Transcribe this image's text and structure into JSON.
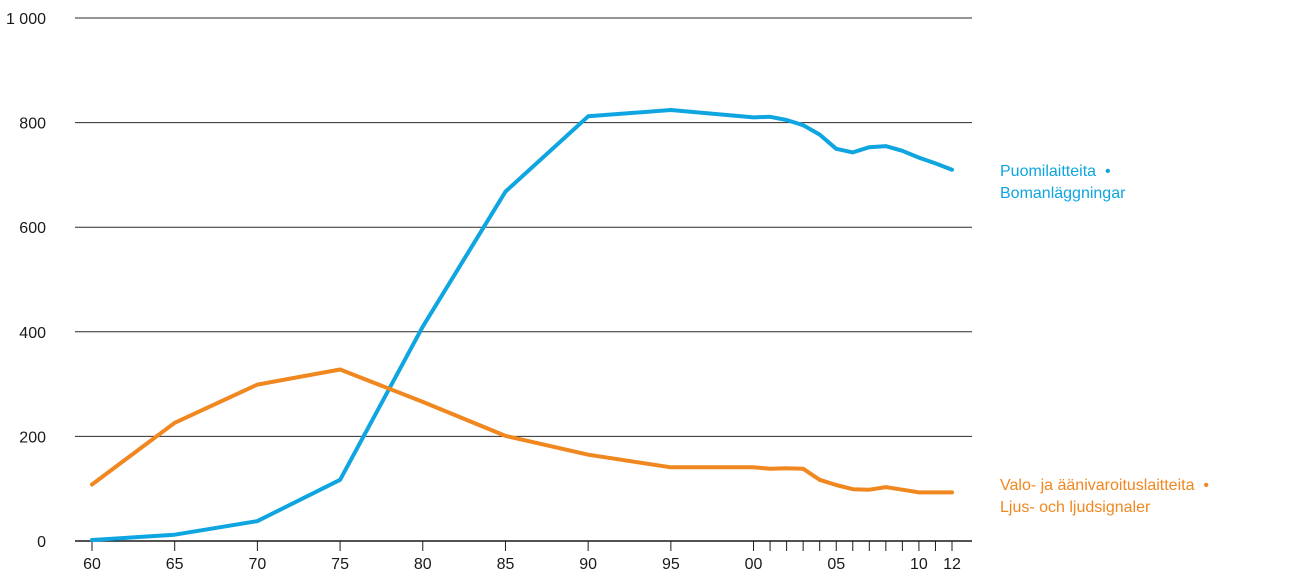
{
  "chart_data": {
    "type": "line",
    "title": "",
    "xlabel": "",
    "ylabel": "",
    "x_type": "year",
    "xlim": [
      1960,
      2013
    ],
    "ylim": [
      0,
      1000
    ],
    "y_ticks": [
      {
        "value": 0,
        "label": "0"
      },
      {
        "value": 200,
        "label": "200"
      },
      {
        "value": 400,
        "label": "400"
      },
      {
        "value": 600,
        "label": "600"
      },
      {
        "value": 800,
        "label": "800"
      },
      {
        "value": 1000,
        "label": "1 000"
      }
    ],
    "x_major_ticks": [
      {
        "value": 1960,
        "label": "60"
      },
      {
        "value": 1965,
        "label": "65"
      },
      {
        "value": 1970,
        "label": "70"
      },
      {
        "value": 1975,
        "label": "75"
      },
      {
        "value": 1980,
        "label": "80"
      },
      {
        "value": 1985,
        "label": "85"
      },
      {
        "value": 1990,
        "label": "90"
      },
      {
        "value": 1995,
        "label": "95"
      },
      {
        "value": 2000,
        "label": "00"
      },
      {
        "value": 2005,
        "label": "05"
      },
      {
        "value": 2010,
        "label": "10"
      },
      {
        "value": 2012,
        "label": "12"
      }
    ],
    "x_minor_ticks": [
      2001,
      2002,
      2003,
      2004,
      2006,
      2007,
      2008,
      2009,
      2011
    ],
    "grid": "horizontal",
    "legend": "right, next to line ends",
    "series": [
      {
        "name": "Puomilaitteita • Bomanläggningar",
        "label_lines": [
          "Puomilaitteita  •",
          "Bomanläggningar"
        ],
        "color": "#0ea5e0",
        "x": [
          1960,
          1965,
          1970,
          1975,
          1980,
          1985,
          1990,
          1995,
          2000,
          2001,
          2002,
          2003,
          2004,
          2005,
          2006,
          2007,
          2008,
          2009,
          2010,
          2011,
          2012
        ],
        "values": [
          2,
          12,
          38,
          117,
          410,
          668,
          812,
          824,
          810,
          811,
          805,
          795,
          777,
          750,
          743,
          753,
          755,
          746,
          733,
          722,
          710
        ]
      },
      {
        "name": "Valo- ja äänivaroituslaitteita • Ljus- och ljudsignaler",
        "label_lines": [
          "Valo- ja äänivaroituslaitteita  •",
          "Ljus- och ljudsignaler"
        ],
        "color": "#f0871f",
        "x": [
          1960,
          1965,
          1970,
          1975,
          1980,
          1985,
          1990,
          1995,
          2000,
          2001,
          2002,
          2003,
          2004,
          2005,
          2006,
          2007,
          2008,
          2009,
          2010,
          2011,
          2012
        ],
        "values": [
          108,
          226,
          299,
          328,
          266,
          201,
          165,
          141,
          141,
          138,
          139,
          138,
          117,
          107,
          99,
          98,
          103,
          98,
          93,
          93,
          93
        ]
      }
    ]
  }
}
